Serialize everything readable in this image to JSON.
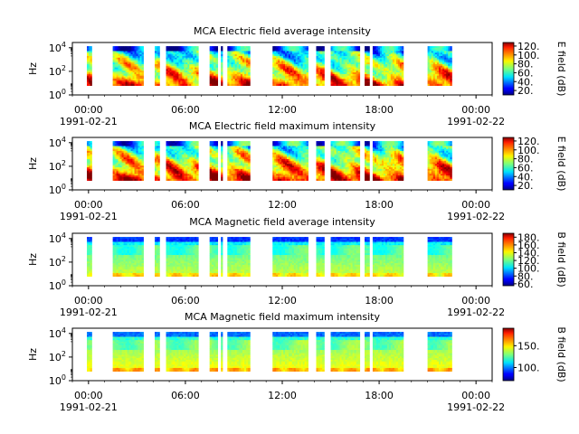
{
  "chart_data": [
    {
      "type": "heatmap",
      "title": "MCA  Electric field average intensity",
      "ylabel": "Hz",
      "colorbar_label": "E field (dB)",
      "colorbar_ticks": [
        "20.",
        "40.",
        "60.",
        "80.",
        "100.",
        "120."
      ],
      "colorbar_range": [
        10,
        128
      ],
      "yticks": [
        "10^0",
        "10^2",
        "10^4"
      ],
      "pattern": "electric",
      "variant": "avg"
    },
    {
      "type": "heatmap",
      "title": "MCA  Electric field maximum intensity",
      "ylabel": "Hz",
      "colorbar_label": "E field (dB)",
      "colorbar_ticks": [
        "20.",
        "40.",
        "60.",
        "80.",
        "100.",
        "120."
      ],
      "colorbar_range": [
        10,
        128
      ],
      "yticks": [
        "10^0",
        "10^2",
        "10^4"
      ],
      "pattern": "electric",
      "variant": "max"
    },
    {
      "type": "heatmap",
      "title": "MCA  Magnetic field average intensity",
      "ylabel": "Hz",
      "colorbar_label": "B field (dB)",
      "colorbar_ticks": [
        "60.",
        "80.",
        "100.",
        "120.",
        "140.",
        "160.",
        "180."
      ],
      "colorbar_range": [
        55,
        190
      ],
      "yticks": [
        "10^0",
        "10^2",
        "10^4"
      ],
      "pattern": "magnetic",
      "variant": "avg"
    },
    {
      "type": "heatmap",
      "title": "MCA  Magnetic field maximum intensity",
      "ylabel": "Hz",
      "colorbar_label": "B field (dB)",
      "colorbar_ticks": [
        "100.",
        "150."
      ],
      "colorbar_range": [
        70,
        190
      ],
      "yticks": [
        "10^0",
        "10^2",
        "10^4"
      ],
      "pattern": "magnetic",
      "variant": "max"
    }
  ],
  "time_axis": {
    "ticks": [
      "00:00",
      "06:00",
      "12:00",
      "18:00",
      "00:00"
    ],
    "tick_hours": [
      0,
      6,
      12,
      18,
      24
    ],
    "start_date": "1991-02-21",
    "end_date": "1991-02-22",
    "range_hours": [
      -1,
      25
    ]
  },
  "data_intervals_hours": [
    [
      -0.1,
      0.2
    ],
    [
      1.5,
      3.4
    ],
    [
      4.1,
      4.4
    ],
    [
      4.8,
      6.8
    ],
    [
      7.5,
      8.0
    ],
    [
      8.2,
      8.3
    ],
    [
      8.6,
      10.0
    ],
    [
      11.4,
      13.6
    ],
    [
      14.1,
      14.6
    ],
    [
      15.0,
      16.8
    ],
    [
      17.1,
      17.4
    ],
    [
      17.6,
      19.5
    ],
    [
      21.0,
      22.5
    ]
  ]
}
